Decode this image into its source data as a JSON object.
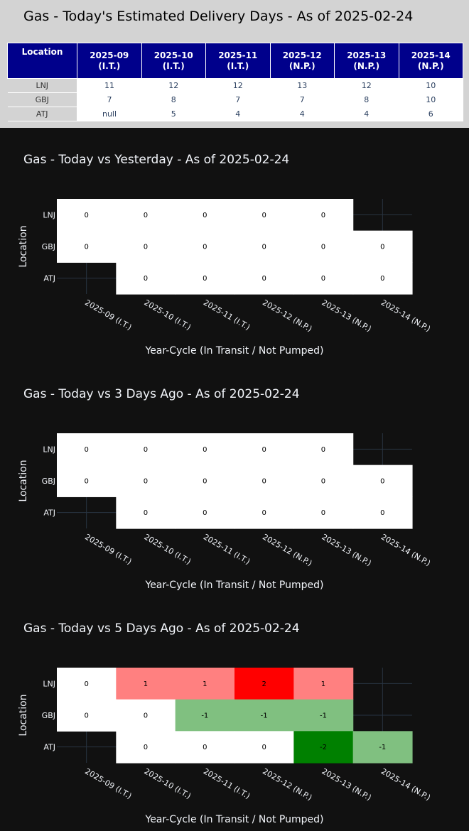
{
  "top": {
    "title": "Gas - Today's Estimated Delivery Days - As of 2025-02-24",
    "table": {
      "location_header": "Location",
      "columns": [
        {
          "year_cycle": "2025-09",
          "status": "(I.T.)"
        },
        {
          "year_cycle": "2025-10",
          "status": "(I.T.)"
        },
        {
          "year_cycle": "2025-11",
          "status": "(I.T.)"
        },
        {
          "year_cycle": "2025-12",
          "status": "(N.P.)"
        },
        {
          "year_cycle": "2025-13",
          "status": "(N.P.)"
        },
        {
          "year_cycle": "2025-14",
          "status": "(N.P.)"
        }
      ],
      "rows": [
        {
          "location": "LNJ",
          "values": [
            "11",
            "12",
            "12",
            "13",
            "12",
            "10"
          ]
        },
        {
          "location": "GBJ",
          "values": [
            "7",
            "8",
            "7",
            "7",
            "8",
            "10"
          ]
        },
        {
          "location": "ATJ",
          "values": [
            "null",
            "5",
            "4",
            "4",
            "4",
            "6"
          ]
        }
      ]
    }
  },
  "chart_data": [
    {
      "type": "heatmap",
      "title": "Gas - Today vs Yesterday - As of 2025-02-24",
      "xlabel": "Year-Cycle (In Transit / Not Pumped)",
      "ylabel": "Location",
      "x": [
        "2025-09 (I.T.)",
        "2025-10 (I.T.)",
        "2025-11 (I.T.)",
        "2025-12 (N.P.)",
        "2025-13 (N.P.)",
        "2025-14 (N.P.)"
      ],
      "y": [
        "LNJ",
        "GBJ",
        "ATJ"
      ],
      "z": [
        [
          0,
          0,
          0,
          0,
          0,
          null
        ],
        [
          0,
          0,
          0,
          0,
          0,
          0
        ],
        [
          null,
          0,
          0,
          0,
          0,
          0
        ]
      ]
    },
    {
      "type": "heatmap",
      "title": "Gas - Today vs 3 Days Ago - As of 2025-02-24",
      "xlabel": "Year-Cycle (In Transit / Not Pumped)",
      "ylabel": "Location",
      "x": [
        "2025-09 (I.T.)",
        "2025-10 (I.T.)",
        "2025-11 (I.T.)",
        "2025-12 (N.P.)",
        "2025-13 (N.P.)",
        "2025-14 (N.P.)"
      ],
      "y": [
        "LNJ",
        "GBJ",
        "ATJ"
      ],
      "z": [
        [
          0,
          0,
          0,
          0,
          0,
          null
        ],
        [
          0,
          0,
          0,
          0,
          0,
          0
        ],
        [
          null,
          0,
          0,
          0,
          0,
          0
        ]
      ]
    },
    {
      "type": "heatmap",
      "title": "Gas - Today vs 5 Days Ago - As of 2025-02-24",
      "xlabel": "Year-Cycle (In Transit / Not Pumped)",
      "ylabel": "Location",
      "x": [
        "2025-09 (I.T.)",
        "2025-10 (I.T.)",
        "2025-11 (I.T.)",
        "2025-12 (N.P.)",
        "2025-13 (N.P.)",
        "2025-14 (N.P.)"
      ],
      "y": [
        "LNJ",
        "GBJ",
        "ATJ"
      ],
      "z": [
        [
          0,
          1,
          1,
          2,
          1,
          null
        ],
        [
          0,
          0,
          -1,
          -1,
          -1,
          null
        ],
        [
          null,
          0,
          0,
          0,
          -2,
          -1
        ]
      ]
    }
  ],
  "colors": {
    "zero": "#ffffff",
    "plus1": "#ff8080",
    "plus2": "#ff0000",
    "minus1": "#80c080",
    "minus2": "#008000",
    "background": "#111111",
    "table_header": "#00008b",
    "grid": "#283442"
  }
}
